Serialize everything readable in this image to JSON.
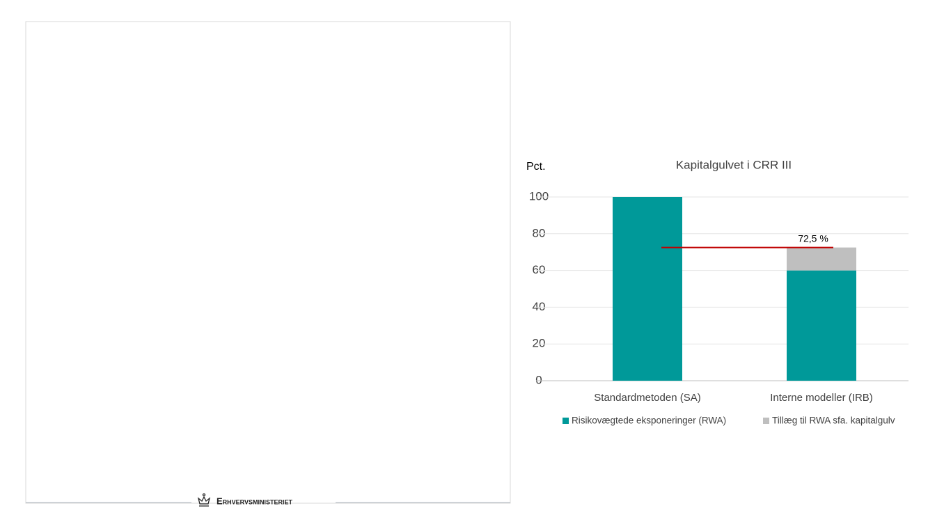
{
  "chart_data": {
    "type": "stacked-bar",
    "title": "Kapitalgulvet i CRR III",
    "ylabel": "Pct.",
    "categories": [
      "Standardmetoden (SA)",
      "Interne modeller (IRB)"
    ],
    "series": [
      {
        "name": "Risikovægtede eksponeringer (RWA)",
        "color": "#009999",
        "values": [
          100,
          60
        ]
      },
      {
        "name": "Tillæg til RWA sfa. kapitalgulv",
        "color": "#bfbfbf",
        "values": [
          null,
          12.5
        ]
      }
    ],
    "ylim": [
      0,
      100
    ],
    "yticks": [
      0,
      20,
      40,
      60,
      80,
      100
    ],
    "grid": true,
    "legend": "bottom",
    "floor_line": {
      "value": 72.5,
      "label": "72,5 %",
      "color": "#c00000"
    }
  },
  "footer": {
    "logo_text": "Erhvervsministeriet"
  }
}
